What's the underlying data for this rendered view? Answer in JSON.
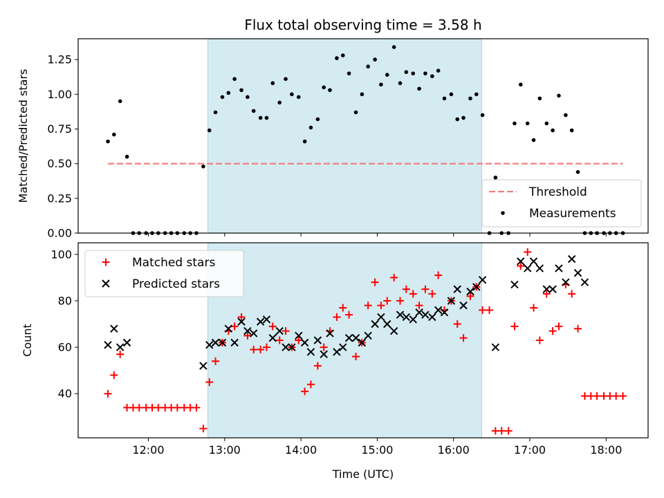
{
  "chart_data": {
    "type": "scatter",
    "title": "Flux total observing time = 3.58 h",
    "xlabel": "Time (UTC)",
    "x_ticks": [
      "12:00",
      "13:00",
      "14:00",
      "15:00",
      "16:00",
      "17:00",
      "18:00"
    ],
    "x_tick_hours": [
      12,
      13,
      14,
      15,
      16,
      17,
      18
    ],
    "xlim_hours": [
      11.08,
      18.55
    ],
    "observing_window_hours": [
      12.78,
      16.37
    ],
    "observing_window_color": "#d4ebf1",
    "panels": [
      {
        "name": "ratio",
        "ylabel": "Matched/Predicted stars",
        "ylim": [
          0,
          1.4
        ],
        "y_ticks": [
          0.0,
          0.25,
          0.5,
          0.75,
          1.0,
          1.25
        ],
        "y_tick_labels": [
          "0.00",
          "0.25",
          "0.50",
          "0.75",
          "1.00",
          "1.25"
        ],
        "legend_position": "lower-right",
        "threshold": {
          "name": "Threshold",
          "value": 0.5,
          "x_range_hours": [
            11.47,
            18.22
          ],
          "color": "#f08080"
        },
        "series": [
          {
            "name": "Measurements",
            "marker": "dot",
            "color": "#000000",
            "x_hours": [
              11.47,
              11.55,
              11.63,
              11.72,
              11.8,
              11.88,
              11.97,
              12.05,
              12.13,
              12.22,
              12.3,
              12.38,
              12.47,
              12.55,
              12.63,
              12.72,
              12.8,
              12.88,
              12.97,
              13.05,
              13.13,
              13.22,
              13.3,
              13.38,
              13.47,
              13.55,
              13.63,
              13.72,
              13.8,
              13.88,
              13.97,
              14.05,
              14.13,
              14.22,
              14.3,
              14.38,
              14.47,
              14.55,
              14.63,
              14.72,
              14.8,
              14.88,
              14.97,
              15.05,
              15.13,
              15.22,
              15.3,
              15.38,
              15.47,
              15.55,
              15.63,
              15.72,
              15.8,
              15.88,
              15.97,
              16.05,
              16.13,
              16.22,
              16.3,
              16.38,
              16.47,
              16.55,
              16.63,
              16.72,
              16.8,
              16.88,
              16.97,
              17.05,
              17.13,
              17.22,
              17.3,
              17.38,
              17.47,
              17.55,
              17.63,
              17.72,
              17.8,
              17.88,
              17.97,
              18.05,
              18.13,
              18.22
            ],
            "y": [
              0.66,
              0.71,
              0.95,
              0.55,
              0,
              0,
              0,
              0,
              0,
              0,
              0,
              0,
              0,
              0,
              0,
              0.48,
              0.74,
              0.87,
              0.98,
              1.01,
              1.11,
              1.03,
              0.98,
              0.88,
              0.83,
              0.83,
              1.08,
              0.94,
              1.11,
              1.0,
              0.98,
              0.66,
              0.76,
              0.82,
              1.05,
              1.03,
              1.26,
              1.28,
              1.15,
              0.87,
              1.0,
              1.2,
              1.25,
              1.07,
              1.14,
              1.34,
              1.08,
              1.16,
              1.15,
              1.04,
              1.15,
              1.13,
              1.17,
              0.97,
              1.0,
              0.82,
              0.83,
              0.97,
              1.0,
              0.85,
              0,
              0.4,
              0,
              0,
              0.79,
              1.07,
              0.79,
              0.67,
              0.97,
              0.79,
              0.74,
              0.99,
              0.85,
              0.74,
              0.44,
              0,
              0,
              0,
              0,
              0,
              0,
              0
            ]
          }
        ]
      },
      {
        "name": "count",
        "ylabel": "Count",
        "ylim": [
          21,
          105
        ],
        "y_ticks": [
          40,
          60,
          80,
          100
        ],
        "y_tick_labels": [
          "40",
          "60",
          "80",
          "100"
        ],
        "legend_position": "upper-left",
        "series": [
          {
            "name": "Matched stars",
            "marker": "plus",
            "color": "#ff0000",
            "x_hours": [
              11.47,
              11.55,
              11.63,
              11.72,
              11.8,
              11.88,
              11.97,
              12.05,
              12.13,
              12.22,
              12.3,
              12.38,
              12.47,
              12.55,
              12.63,
              12.72,
              12.8,
              12.88,
              12.97,
              13.05,
              13.13,
              13.22,
              13.3,
              13.38,
              13.47,
              13.55,
              13.63,
              13.72,
              13.8,
              13.88,
              13.97,
              14.05,
              14.13,
              14.22,
              14.3,
              14.38,
              14.47,
              14.55,
              14.63,
              14.72,
              14.8,
              14.88,
              14.97,
              15.05,
              15.13,
              15.22,
              15.3,
              15.38,
              15.47,
              15.55,
              15.63,
              15.72,
              15.8,
              15.88,
              15.97,
              16.05,
              16.13,
              16.22,
              16.3,
              16.38,
              16.47,
              16.55,
              16.63,
              16.72,
              16.8,
              16.88,
              16.97,
              17.05,
              17.13,
              17.22,
              17.3,
              17.38,
              17.47,
              17.55,
              17.63,
              17.72,
              17.8,
              17.88,
              17.97,
              18.05,
              18.13,
              18.22
            ],
            "y": [
              40,
              48,
              57,
              34,
              34,
              34,
              34,
              34,
              34,
              34,
              34,
              34,
              34,
              34,
              34,
              25,
              45,
              54,
              62,
              67,
              69,
              73,
              65,
              59,
              59,
              60,
              69,
              63,
              67,
              60,
              63,
              41,
              44,
              52,
              60,
              67,
              73,
              77,
              74,
              56,
              62,
              78,
              88,
              78,
              80,
              90,
              80,
              85,
              83,
              78,
              85,
              83,
              91,
              76,
              80,
              70,
              64,
              82,
              86,
              76,
              76,
              24,
              24,
              24,
              69,
              95,
              101,
              77,
              63,
              83,
              67,
              69,
              87,
              83,
              68,
              39,
              39,
              39,
              39,
              39,
              39,
              39
            ]
          },
          {
            "name": "Predicted stars",
            "marker": "x",
            "color": "#000000",
            "x_hours": [
              11.47,
              11.55,
              11.63,
              11.72,
              12.72,
              12.8,
              12.88,
              12.97,
              13.05,
              13.13,
              13.22,
              13.3,
              13.38,
              13.47,
              13.55,
              13.63,
              13.72,
              13.8,
              13.88,
              13.97,
              14.05,
              14.13,
              14.22,
              14.3,
              14.38,
              14.47,
              14.55,
              14.63,
              14.72,
              14.8,
              14.88,
              14.97,
              15.05,
              15.13,
              15.22,
              15.3,
              15.38,
              15.47,
              15.55,
              15.63,
              15.72,
              15.8,
              15.88,
              15.97,
              16.05,
              16.13,
              16.22,
              16.3,
              16.38,
              16.55,
              16.8,
              16.88,
              16.97,
              17.05,
              17.13,
              17.22,
              17.3,
              17.38,
              17.47,
              17.55,
              17.63,
              17.72
            ],
            "y": [
              61,
              68,
              60,
              62,
              52,
              61,
              62,
              62,
              68,
              62,
              71,
              67,
              66,
              71,
              72,
              64,
              67,
              60,
              60,
              65,
              62,
              58,
              63,
              57,
              66,
              58,
              60,
              64,
              64,
              62,
              65,
              70,
              73,
              70,
              67,
              74,
              73,
              72,
              75,
              74,
              73,
              76,
              75,
              80,
              85,
              78,
              84,
              86,
              89,
              60,
              87,
              97,
              94,
              97,
              94,
              85,
              85,
              94,
              88,
              98,
              92,
              88
            ]
          }
        ]
      }
    ]
  }
}
